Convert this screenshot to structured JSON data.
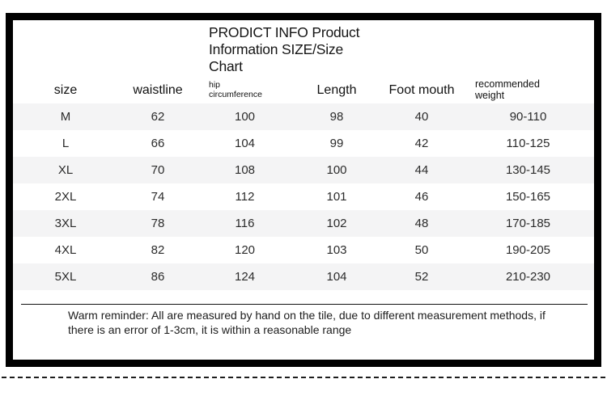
{
  "title": "PRODICT INFO Product Information SIZE/Size Chart",
  "table": {
    "headers": {
      "size": "size",
      "waistline": "waistline",
      "hip_line1": "hip",
      "hip_line2": "circumference",
      "length": "Length",
      "foot_mouth": "Foot mouth",
      "weight_line1": "recommended",
      "weight_line2": "weight"
    },
    "rows": [
      [
        "M",
        "62",
        "100",
        "98",
        "40",
        "90-110"
      ],
      [
        "L",
        "66",
        "104",
        "99",
        "42",
        "110-125"
      ],
      [
        "XL",
        "70",
        "108",
        "100",
        "44",
        "130-145"
      ],
      [
        "2XL",
        "74",
        "112",
        "101",
        "46",
        "150-165"
      ],
      [
        "3XL",
        "78",
        "116",
        "102",
        "48",
        "170-185"
      ],
      [
        "4XL",
        "82",
        "120",
        "103",
        "50",
        "190-205"
      ],
      [
        "5XL",
        "86",
        "124",
        "104",
        "52",
        "210-230"
      ]
    ]
  },
  "reminder": "Warm reminder: All are measured by hand on the tile, due to different measurement methods, if there is an error of 1-3cm, it is within a reasonable range",
  "colors": {
    "frame_border": "#000000",
    "row_stripe": "#f4f4f5",
    "text": "#1a1a1a"
  }
}
